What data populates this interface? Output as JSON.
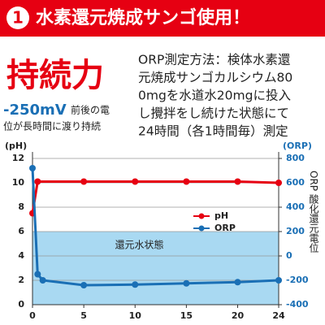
{
  "header": {
    "badge": "1",
    "title": "水素還元焼成サンゴ使用！"
  },
  "headline": "持続力",
  "claim": {
    "value_text": "-250mV",
    "text_1": "前後の電",
    "text_2": "位が長時間に渡り持続"
  },
  "method_lines": [
    "ORP測定方法：検体水素還",
    "元焼成サンゴカルシウム80",
    "0mgを水道水20mgに投入",
    "し攪拌をし続けた状態にて",
    "24時間（各1時間毎）測定"
  ],
  "chart_data": {
    "type": "line",
    "y_label": "(pH)",
    "y2_label": "(ORP)",
    "y2_title": "ORP 酸化還元電位",
    "xlim": [
      0,
      24
    ],
    "xticks": [
      0,
      5,
      10,
      15,
      20,
      24
    ],
    "ylim": [
      0,
      12
    ],
    "yticks": [
      0,
      2,
      4,
      6,
      8,
      10,
      12
    ],
    "y2lim": [
      -400,
      800
    ],
    "y2ticks": [
      -400,
      -200,
      0,
      200,
      400,
      600,
      800
    ],
    "grid": true,
    "legend": "right",
    "annotations": [
      {
        "text": "還元水状態",
        "y2_range": [
          -400,
          200
        ],
        "color": "#a9d9f2"
      }
    ],
    "series": [
      {
        "name": "pH",
        "color": "#e60012",
        "x": [
          0,
          0.5,
          5,
          10,
          15,
          20,
          24
        ],
        "values": [
          7.5,
          10.1,
          10.1,
          10.1,
          10.1,
          10.1,
          10.0
        ]
      },
      {
        "name": "ORP",
        "color": "#1a6fb5",
        "axis": "y2",
        "x": [
          0,
          0.5,
          1,
          5,
          10,
          15,
          20,
          24
        ],
        "values": [
          720,
          -150,
          -200,
          -240,
          -235,
          -225,
          -215,
          -200
        ]
      }
    ]
  }
}
